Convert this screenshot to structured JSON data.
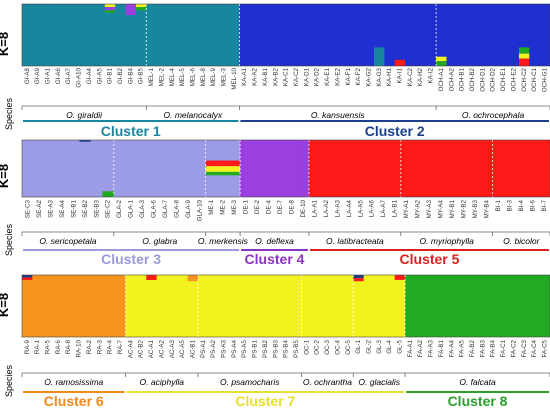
{
  "chart_data": [
    {
      "type": "bar",
      "subtype": "stacked-proportion",
      "panel_label": "K=8",
      "y_axis_label": "Species",
      "ylim": [
        0,
        1
      ],
      "samples": [
        "GI-A8",
        "GI-A9",
        "GI-A1",
        "GI-A6",
        "GI-A7",
        "GI-A10",
        "GI-A4",
        "GI-A5",
        "GI-B1",
        "GI-B2",
        "GI-B4",
        "GI-B5",
        "MEL-1",
        "MEL-2",
        "MEL-4",
        "MEL-5",
        "MEL-6",
        "MEL-8",
        "MEL-9",
        "MEL-3",
        "MEL-10",
        "KA-A1",
        "KA-A2",
        "KA-B1",
        "KA-B2",
        "KA-C1",
        "KA-C2",
        "KA-D1",
        "KA-D2",
        "KA-E1",
        "KA-E2",
        "KA-F1",
        "KA-F2",
        "KA-G2",
        "KA-G3",
        "KA-H1",
        "KA-I1",
        "KA-C2",
        "KA-H2",
        "KA-I2",
        "OCH-A1",
        "OCH-A2",
        "OCH-B1",
        "OCH-B2",
        "OCH-D1",
        "OCH-D2",
        "OCH-E1",
        "OCH-E2",
        "OCH-C2",
        "OCH-C1",
        "OCH-G1"
      ],
      "species_groups": [
        {
          "name": "O. giraldii",
          "count": 12
        },
        {
          "name": "O. melanocalyx",
          "count": 9
        },
        {
          "name": "O. kansuensis",
          "count": 19
        },
        {
          "name": "O. ochrocephala",
          "count": 11
        }
      ],
      "clusters": [
        {
          "name": "Cluster 1",
          "species_count": 2,
          "color": "#17869f"
        },
        {
          "name": "Cluster 2",
          "species_count": 2,
          "color": "#1d3f8a"
        }
      ]
    },
    {
      "type": "bar",
      "subtype": "stacked-proportion",
      "panel_label": "K=8",
      "y_axis_label": "Species",
      "ylim": [
        0,
        1
      ],
      "samples": [
        "SE-C3",
        "SE-A2",
        "SE-A3",
        "SE-A4",
        "SE-B1",
        "SE-B2",
        "SE-B3",
        "SE-C2",
        "GLA-2",
        "GLA-1",
        "GLA-3",
        "GLA-6",
        "GLA-7",
        "GLA-8",
        "GLA-9",
        "GLA-10",
        "ME-1",
        "ME-2",
        "ME-3",
        "DE-1",
        "DE-2",
        "DE-4",
        "DE-7",
        "DE-8",
        "DE-10",
        "LA-A1",
        "LA-A2",
        "LA-A3",
        "LA-A4",
        "LA-A5",
        "LA-A6",
        "LA-A7",
        "LA-B1",
        "MY-A1",
        "MY-A2",
        "MY-A3",
        "MY-A4",
        "MY-B1",
        "MY-B2",
        "MY-B3",
        "MY-B4",
        "BI-1",
        "BI-3",
        "BI-4",
        "BI-6",
        "BI-7"
      ],
      "species_groups": [
        {
          "name": "O. sericopetala",
          "count": 8
        },
        {
          "name": "O. glabra",
          "count": 8
        },
        {
          "name": "O. merkensis",
          "count": 3
        },
        {
          "name": "O. deflexa",
          "count": 6
        },
        {
          "name": "O. latibracteata",
          "count": 8
        },
        {
          "name": "O. myriophylla",
          "count": 8
        },
        {
          "name": "O. bicolor",
          "count": 5
        }
      ],
      "clusters": [
        {
          "name": "Cluster 3",
          "species_count": 3,
          "color": "#9b9bdb"
        },
        {
          "name": "Cluster 4",
          "species_count": 1,
          "color": "#8a35bf"
        },
        {
          "name": "Cluster 5",
          "species_count": 3,
          "color": "#dc1f1f"
        }
      ]
    },
    {
      "type": "bar",
      "subtype": "stacked-proportion",
      "panel_label": "K=8",
      "y_axis_label": "Species",
      "ylim": [
        0,
        1
      ],
      "samples": [
        "RA-9",
        "RA-1",
        "RA-5",
        "RA-6",
        "RA-8",
        "RA-10",
        "RA-2",
        "RA-3",
        "RA-4",
        "RA-7",
        "AC-A4",
        "AC-B2",
        "AC-A1",
        "AC-A2",
        "AC-A3",
        "AC-A5",
        "AC-B1",
        "PS-A1",
        "PS-A2",
        "PS-A3",
        "PS-A4",
        "PS-A5",
        "PS-B1",
        "PS-B2",
        "PS-B3",
        "PS-B4",
        "PS-B5",
        "OC-1",
        "OC-2",
        "OC-3",
        "OC-4",
        "OC-5",
        "GL-1",
        "GL-2",
        "GL-3",
        "GL-4",
        "GL-5",
        "FA-A1",
        "FA-A2",
        "FA-A3",
        "FA-B1",
        "FA-A4",
        "FA-A5",
        "FA-B2",
        "FA-B3",
        "FA-B4",
        "FA-C1",
        "FA-C2",
        "FA-C3",
        "FA-C4",
        "FA-C5"
      ],
      "species_groups": [
        {
          "name": "O. ramosissima",
          "count": 10
        },
        {
          "name": "O. aciphylla",
          "count": 7
        },
        {
          "name": "O. psamocharis",
          "count": 10
        },
        {
          "name": "O. ochrantha",
          "count": 5
        },
        {
          "name": "O. glacialis",
          "count": 5
        },
        {
          "name": "O. falcata",
          "count": 14
        }
      ],
      "clusters": [
        {
          "name": "Cluster 6",
          "species_count": 1,
          "color": "#f08a1c"
        },
        {
          "name": "Cluster 7",
          "species_count": 4,
          "color": "#e8e02a"
        },
        {
          "name": "Cluster 8",
          "species_count": 1,
          "color": "#2ca02c"
        }
      ]
    }
  ]
}
